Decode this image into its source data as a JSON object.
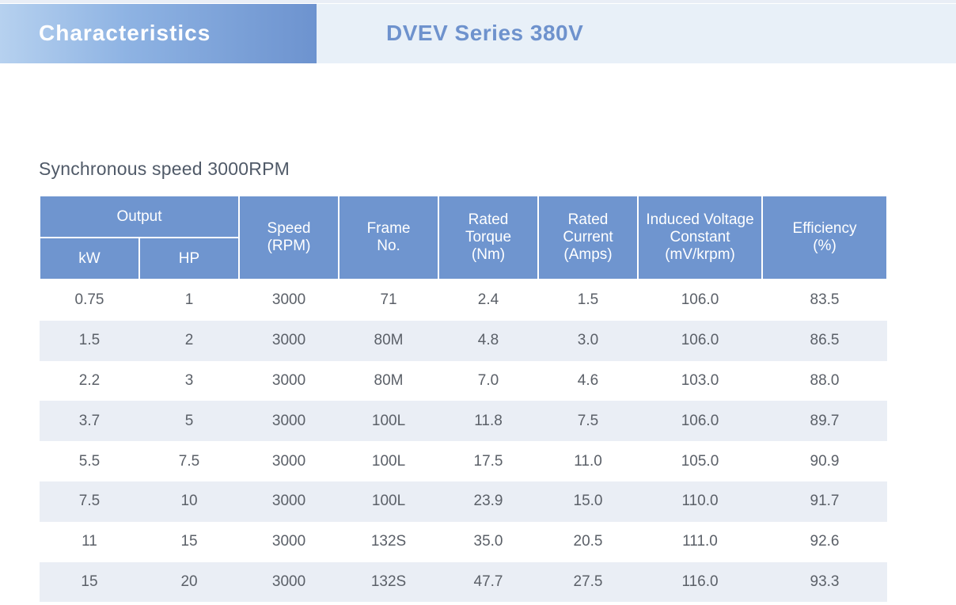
{
  "header": {
    "tab_title": "Characteristics",
    "series_title": "DVEV Series 380V"
  },
  "section_title": "Synchronous speed 3000RPM",
  "table": {
    "group_header": "Output",
    "columns": {
      "kw": "kW",
      "hp": "HP",
      "speed": [
        "Speed",
        "(RPM)"
      ],
      "frame": [
        "Frame",
        "No."
      ],
      "torque": [
        "Rated",
        "Torque",
        "(Nm)"
      ],
      "current": [
        "Rated",
        "Current",
        "(Amps)"
      ],
      "voltage": [
        "Induced Voltage",
        "Constant",
        "(mV/krpm)"
      ],
      "efficiency": [
        "Efficiency",
        "(%)"
      ]
    },
    "rows": [
      [
        "0.75",
        "1",
        "3000",
        "71",
        "2.4",
        "1.5",
        "106.0",
        "83.5"
      ],
      [
        "1.5",
        "2",
        "3000",
        "80M",
        "4.8",
        "3.0",
        "106.0",
        "86.5"
      ],
      [
        "2.2",
        "3",
        "3000",
        "80M",
        "7.0",
        "4.6",
        "103.0",
        "88.0"
      ],
      [
        "3.7",
        "5",
        "3000",
        "100L",
        "11.8",
        "7.5",
        "106.0",
        "89.7"
      ],
      [
        "5.5",
        "7.5",
        "3000",
        "100L",
        "17.5",
        "11.0",
        "105.0",
        "90.9"
      ],
      [
        "7.5",
        "10",
        "3000",
        "100L",
        "23.9",
        "15.0",
        "110.0",
        "91.7"
      ],
      [
        "11",
        "15",
        "3000",
        "132S",
        "35.0",
        "20.5",
        "111.0",
        "92.6"
      ],
      [
        "15",
        "20",
        "3000",
        "132S",
        "47.7",
        "27.5",
        "116.0",
        "93.3"
      ]
    ]
  },
  "colors": {
    "header_blue": "#6f95cf",
    "series_text": "#6e92cd",
    "stripe": "#eaeef5"
  }
}
